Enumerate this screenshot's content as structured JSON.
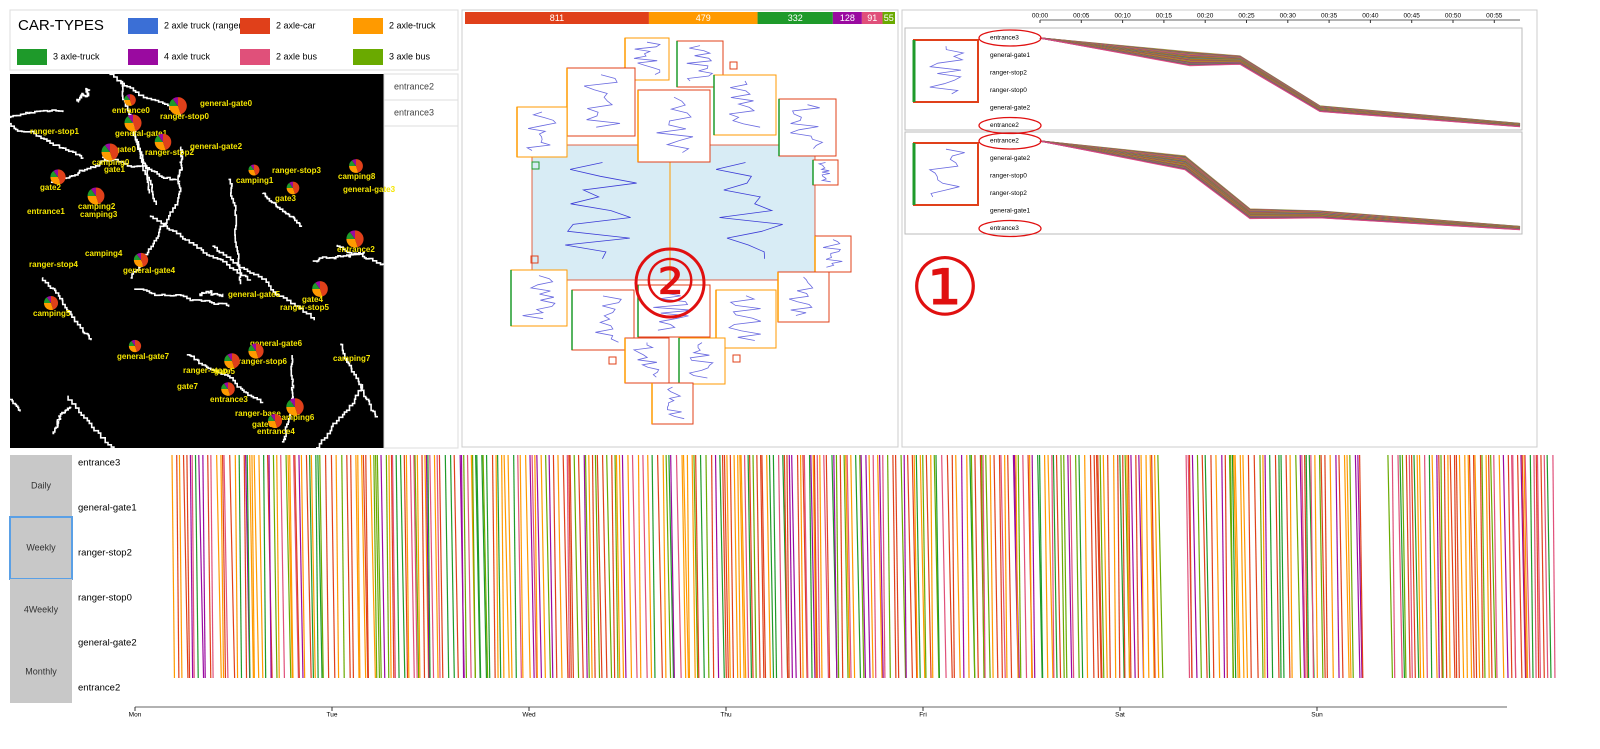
{
  "legend": {
    "title": "CAR-TYPES",
    "items": [
      {
        "label": "2 axle truck (ranger)",
        "color": "#3b6fd6"
      },
      {
        "label": "2 axle-car",
        "color": "#e0401a"
      },
      {
        "label": "2 axle-truck",
        "color": "#ff9a00"
      },
      {
        "label": "3 axle-truck",
        "color": "#1e9a2a"
      },
      {
        "label": "4 axle truck",
        "color": "#9a0aa0"
      },
      {
        "label": "2 axle bus",
        "color": "#e0507a"
      },
      {
        "label": "3 axle bus",
        "color": "#6aaa00"
      }
    ]
  },
  "map": {
    "labels": [
      "entrance0",
      "general-gate0",
      "ranger-stop0",
      "ranger-stop1",
      "general-gate1",
      "gate0",
      "camping0",
      "gate1",
      "ranger-stop2",
      "general-gate2",
      "camping1",
      "ranger-stop3",
      "camping8",
      "general-gate3",
      "gate2",
      "entrance1",
      "camping2",
      "camping3",
      "gate3",
      "camping4",
      "entrance2",
      "ranger-stop4",
      "general-gate4",
      "general-gate5",
      "gate4",
      "ranger-stop5",
      "camping5",
      "general-gate6",
      "general-gate7",
      "camping7",
      "ranger-stop6",
      "ranger-stop7",
      "gate5",
      "gate7",
      "entrance3",
      "ranger-base",
      "camping6",
      "gate6",
      "entrance4"
    ]
  },
  "side_list": [
    "entrance2",
    "entrance3"
  ],
  "counts": {
    "values": [
      811,
      479,
      332,
      128,
      91,
      55
    ],
    "colors": [
      "#e0401a",
      "#ff9a00",
      "#1e9a2a",
      "#9a0aa0",
      "#e0507a",
      "#6aaa00"
    ]
  },
  "annotations": {
    "middle": "②",
    "right": "①"
  },
  "sequence": {
    "time_ticks": [
      "00:00",
      "00:05",
      "00:10",
      "00:15",
      "00:20",
      "00:25",
      "00:30",
      "00:35",
      "00:40",
      "00:45",
      "00:50",
      "00:55"
    ],
    "panels": [
      {
        "locations": [
          "entrance3",
          "general-gate1",
          "ranger-stop2",
          "ranger-stop0",
          "general-gate2",
          "entrance2"
        ]
      },
      {
        "locations": [
          "entrance2",
          "general-gate2",
          "ranger-stop0",
          "ranger-stop2",
          "general-gate1",
          "entrance3"
        ]
      }
    ]
  },
  "timeline": {
    "modes": [
      "Daily",
      "Weekly",
      "4Weekly",
      "Monthly"
    ],
    "selected_mode": "Weekly",
    "rows": [
      "entrance3",
      "general-gate1",
      "ranger-stop2",
      "ranger-stop0",
      "general-gate2",
      "entrance2"
    ],
    "days": [
      "Mon",
      "Tue",
      "Wed",
      "Thu",
      "Fri",
      "Sat",
      "Sun"
    ]
  }
}
